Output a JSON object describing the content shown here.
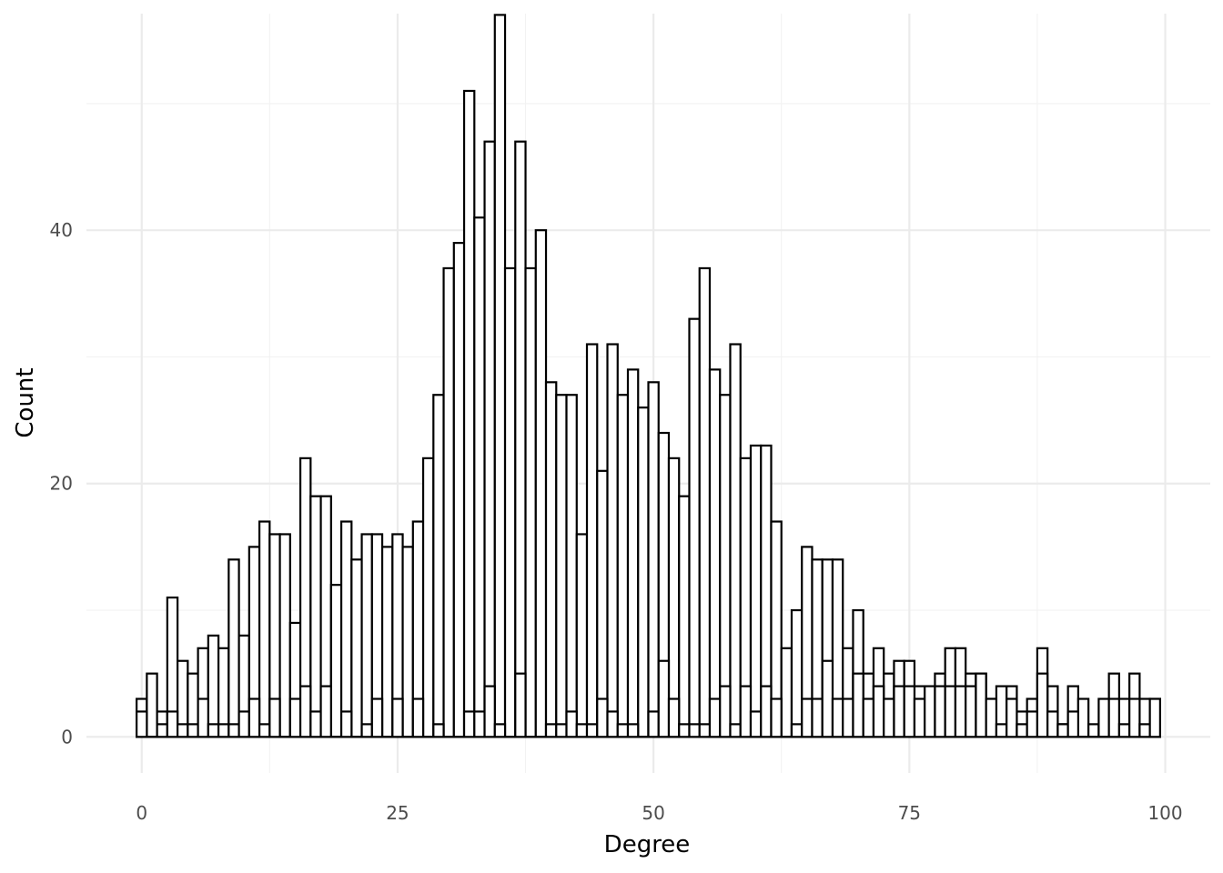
{
  "chart_data": {
    "type": "bar",
    "chart_kind": "histogram",
    "title": "",
    "xlabel": "Degree",
    "ylabel": "Count",
    "xlim": [
      -5.4,
      104.4
    ],
    "ylim": [
      -2.85,
      57.1
    ],
    "x_ticks": [
      0,
      25,
      50,
      75,
      100
    ],
    "y_ticks": [
      0,
      20,
      40
    ],
    "grid": true,
    "bar_fill": "#ffffff",
    "bar_outline": "#000000",
    "bin_width": 1,
    "layers": [
      {
        "name": "overlay_1",
        "x": [
          0,
          1,
          2,
          3,
          4,
          5,
          6,
          7,
          8,
          9,
          10,
          11,
          12,
          13,
          14,
          15,
          16,
          17,
          18,
          19,
          20,
          21,
          22,
          23,
          24,
          25,
          26,
          27,
          28,
          29,
          30,
          31,
          32,
          33,
          34,
          35,
          36,
          37,
          38,
          39,
          40,
          41,
          42,
          43,
          44,
          45,
          46,
          47,
          48,
          49,
          50,
          51,
          52,
          53,
          54,
          55,
          56,
          57,
          58,
          59,
          60,
          61,
          62,
          63,
          64,
          65,
          66,
          67,
          68,
          69,
          70,
          71,
          72,
          73,
          74,
          75,
          76,
          77,
          78,
          79,
          80,
          81,
          82,
          83,
          84,
          85,
          86,
          87,
          88,
          89,
          90,
          91,
          92,
          93,
          94,
          95,
          96,
          97,
          98,
          99
        ],
        "values": [
          3,
          5,
          2,
          11,
          6,
          5,
          7,
          8,
          7,
          14,
          8,
          15,
          17,
          16,
          16,
          9,
          22,
          19,
          19,
          12,
          17,
          14,
          16,
          16,
          15,
          16,
          15,
          17,
          22,
          27,
          37,
          39,
          51,
          41,
          47,
          57,
          37,
          47,
          37,
          40,
          28,
          27,
          27,
          16,
          31,
          21,
          31,
          27,
          29,
          26,
          28,
          24,
          22,
          19,
          33,
          37,
          29,
          27,
          31,
          22,
          23,
          23,
          17,
          7,
          10,
          15,
          14,
          14,
          14,
          7,
          10,
          5,
          7,
          5,
          6,
          6,
          4,
          4,
          5,
          7,
          7,
          5,
          5,
          3,
          4,
          4,
          2,
          3,
          7,
          4,
          1,
          4,
          3,
          1,
          3,
          5,
          3,
          5,
          3,
          3
        ]
      },
      {
        "name": "overlay_2",
        "x": [
          0,
          1,
          2,
          3,
          4,
          5,
          6,
          7,
          8,
          9,
          10,
          11,
          12,
          13,
          14,
          15,
          16,
          17,
          18,
          19,
          20,
          21,
          22,
          23,
          24,
          25,
          26,
          27,
          28,
          29,
          30,
          31,
          32,
          33,
          34,
          35,
          36,
          37,
          38,
          39,
          40,
          41,
          42,
          43,
          44,
          45,
          46,
          47,
          48,
          49,
          50,
          51,
          52,
          53,
          54,
          55,
          56,
          57,
          58,
          59,
          60,
          61,
          62,
          63,
          64,
          65,
          66,
          67,
          68,
          69,
          70,
          71,
          72,
          73,
          74,
          75,
          76,
          77,
          78,
          79,
          80,
          81,
          82,
          83,
          84,
          85,
          86,
          87,
          88,
          89,
          90,
          91,
          92,
          93,
          94,
          95,
          96,
          97,
          98,
          99
        ],
        "values": [
          2,
          0,
          1,
          2,
          1,
          1,
          3,
          1,
          1,
          1,
          2,
          3,
          1,
          3,
          0,
          3,
          4,
          2,
          4,
          0,
          2,
          0,
          1,
          3,
          0,
          3,
          0,
          3,
          0,
          1,
          0,
          0,
          2,
          2,
          4,
          1,
          0,
          5,
          0,
          0,
          1,
          1,
          2,
          1,
          1,
          3,
          2,
          1,
          1,
          0,
          2,
          6,
          3,
          1,
          1,
          1,
          3,
          4,
          1,
          4,
          2,
          4,
          3,
          0,
          1,
          3,
          3,
          6,
          3,
          3,
          5,
          3,
          4,
          3,
          4,
          4,
          3,
          4,
          4,
          4,
          4,
          4,
          5,
          3,
          1,
          3,
          1,
          2,
          5,
          2,
          1,
          2,
          0,
          0,
          0,
          3,
          1,
          3,
          1,
          3
        ]
      }
    ]
  }
}
